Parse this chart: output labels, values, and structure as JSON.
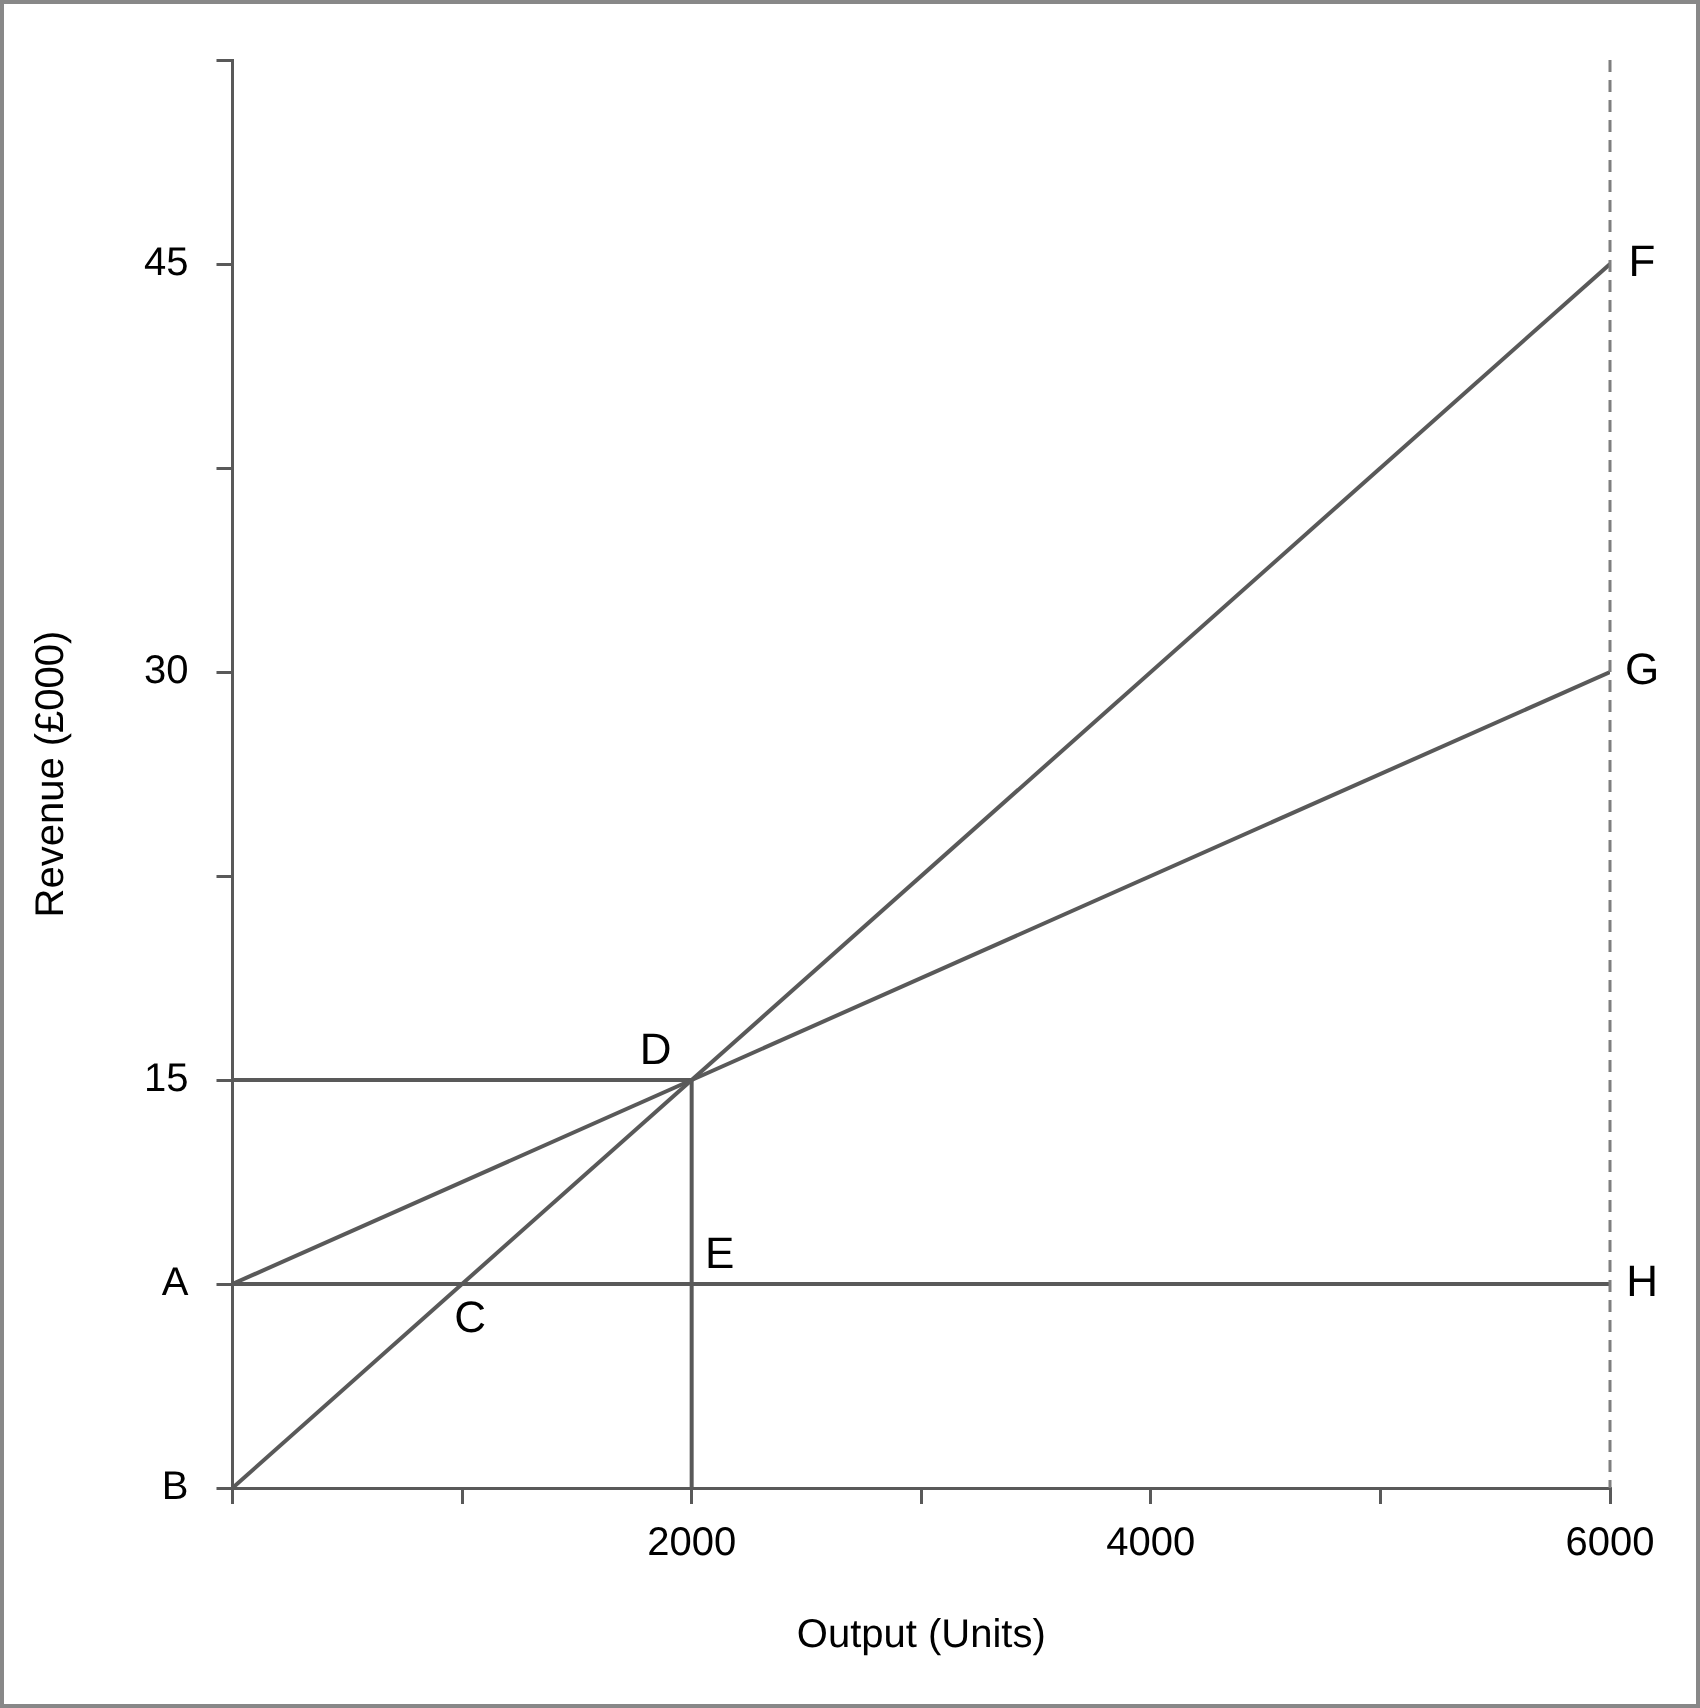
{
  "chart_data": {
    "type": "line",
    "xlabel": "Output (Units)",
    "ylabel": "Revenue (£000)",
    "xlim": [
      0,
      6000
    ],
    "ylim": [
      0,
      52.5
    ],
    "xticks": [
      {
        "value": 0,
        "label": null
      },
      {
        "value": 1000,
        "label": null
      },
      2000,
      {
        "value": 3000,
        "label": null
      },
      4000,
      {
        "value": 5000,
        "label": null
      },
      6000
    ],
    "yticks": [
      {
        "value": 0,
        "label": "B"
      },
      {
        "value": 7.5,
        "label": "A"
      },
      15,
      {
        "value": 22.5,
        "label": null
      },
      30,
      {
        "value": 37.5,
        "label": null
      },
      45,
      {
        "value": 52.5,
        "label": null
      }
    ],
    "series": [
      {
        "color": "#595959",
        "x": [
          0,
          6000
        ],
        "values": [
          0,
          45
        ]
      },
      {
        "color": "#595959",
        "x": [
          0,
          6000
        ],
        "values": [
          7.5,
          30
        ]
      },
      {
        "color": "#595959",
        "x": [
          0,
          6000
        ],
        "values": [
          7.5,
          7.5
        ]
      },
      {
        "color": "#595959",
        "x": [
          0,
          2000
        ],
        "values": [
          15,
          15
        ]
      },
      {
        "color": "#595959",
        "x": [
          2000,
          2000
        ],
        "values": [
          0,
          15
        ]
      }
    ],
    "ref_lines": [
      {
        "axis": "x",
        "value": 6000,
        "color": "#7f7f7f",
        "line_style": "dashed"
      }
    ],
    "annotations": [
      {
        "text": "D",
        "x": 2000,
        "y": 15
      },
      {
        "text": "E",
        "x": 2000,
        "y": 7.5
      },
      {
        "text": "C",
        "x": 1000,
        "y": 7.5
      },
      {
        "text": "F",
        "x": 6000,
        "y": 45
      },
      {
        "text": "G",
        "x": 6000,
        "y": 30
      },
      {
        "text": "H",
        "x": 6000,
        "y": 7.5
      }
    ],
    "grid": false,
    "legend": false,
    "marker": "none",
    "line_style": "solid"
  }
}
